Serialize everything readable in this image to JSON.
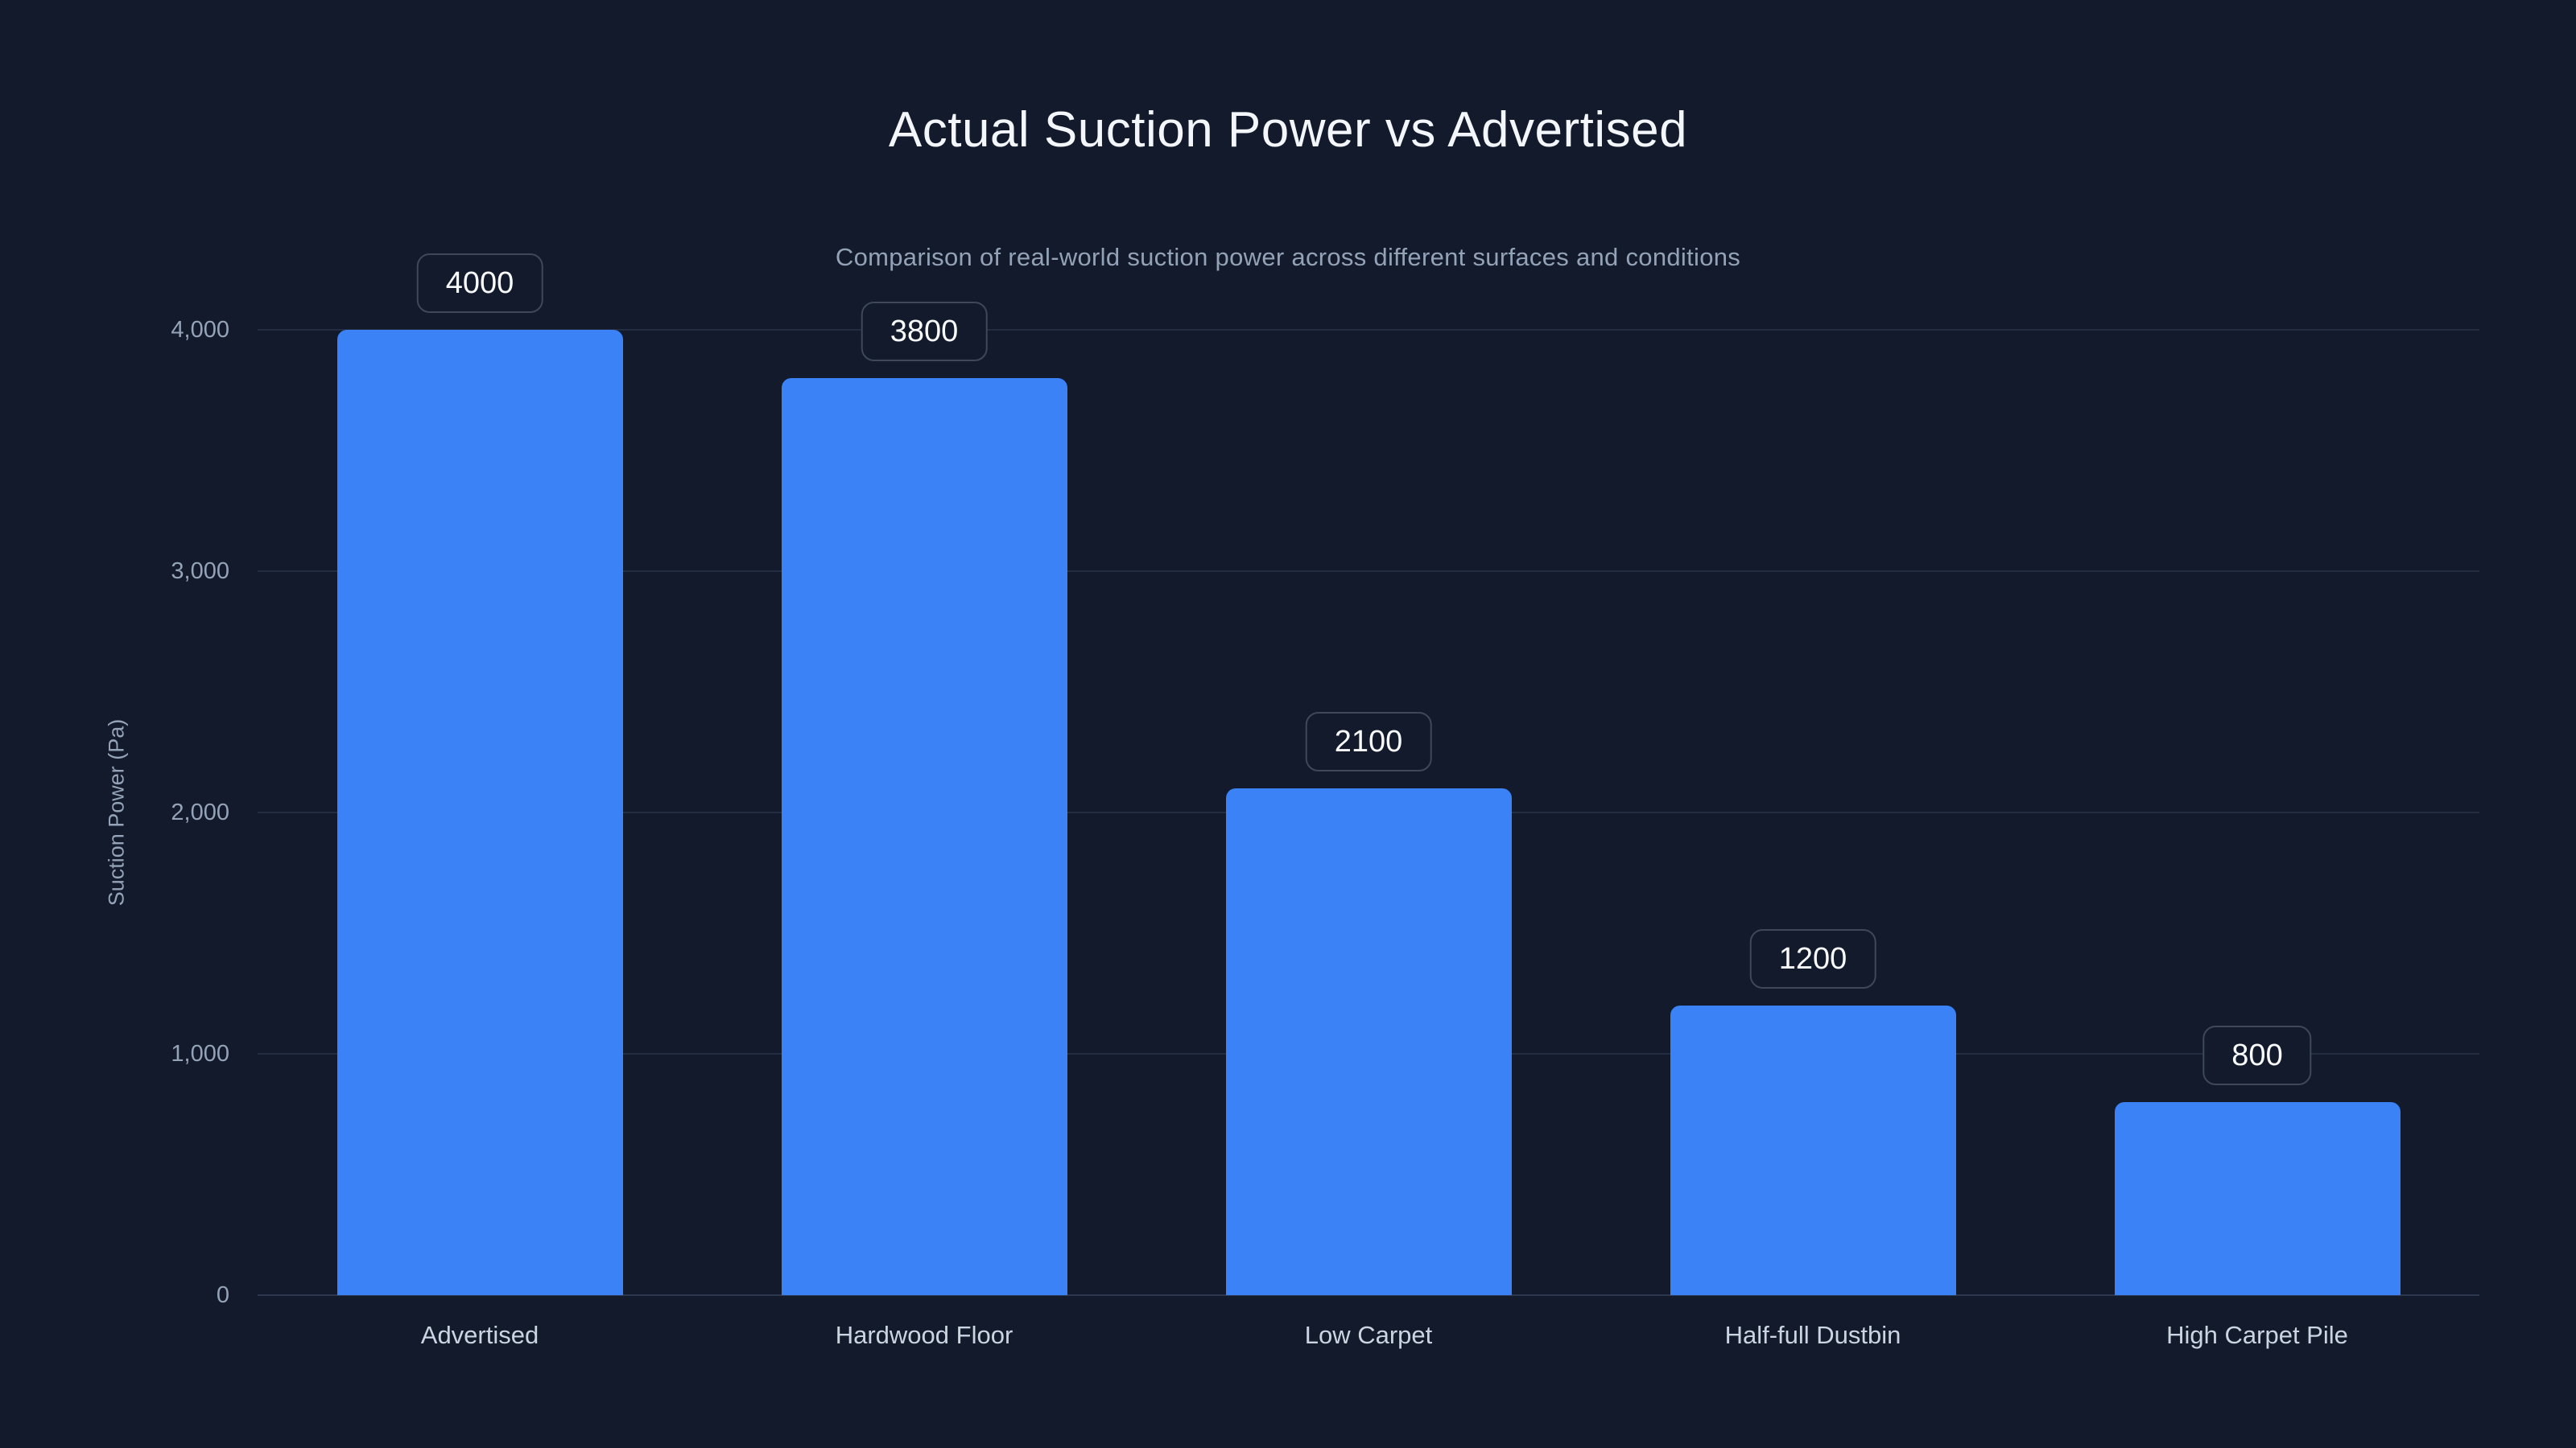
{
  "title": "Actual Suction Power vs Advertised",
  "subtitle": "Comparison of real-world suction power across different surfaces and conditions",
  "chart_data": {
    "type": "bar",
    "title": "Actual Suction Power vs Advertised",
    "subtitle": "Comparison of real-world suction power across different surfaces and conditions",
    "categories": [
      "Advertised",
      "Hardwood Floor",
      "Low Carpet",
      "Half-full Dustbin",
      "High Carpet Pile"
    ],
    "values": [
      4000,
      3800,
      2100,
      1200,
      800
    ],
    "value_labels": [
      "4000",
      "3800",
      "2100",
      "1200",
      "800"
    ],
    "xlabel": "",
    "ylabel": "Suction Power (Pa)",
    "ylim": [
      0,
      4000
    ],
    "yticks": [
      0,
      1000,
      2000,
      3000,
      4000
    ],
    "ytick_labels": [
      "0",
      "1,000",
      "2,000",
      "3,000",
      "4,000"
    ],
    "grid": true,
    "legend": false,
    "colors": {
      "background": "#121a2c",
      "bar": "#3b82f6",
      "grid_line": "#222d42",
      "axis_line": "#2c3850",
      "title_text": "#f3f6fa",
      "subtitle_text": "#93a2b6",
      "tick_text": "#94a3b8",
      "category_text": "#cbd5e1",
      "badge_border": "#3e4859",
      "badge_background": "#121a2c",
      "badge_text": "#f8fafc"
    }
  }
}
